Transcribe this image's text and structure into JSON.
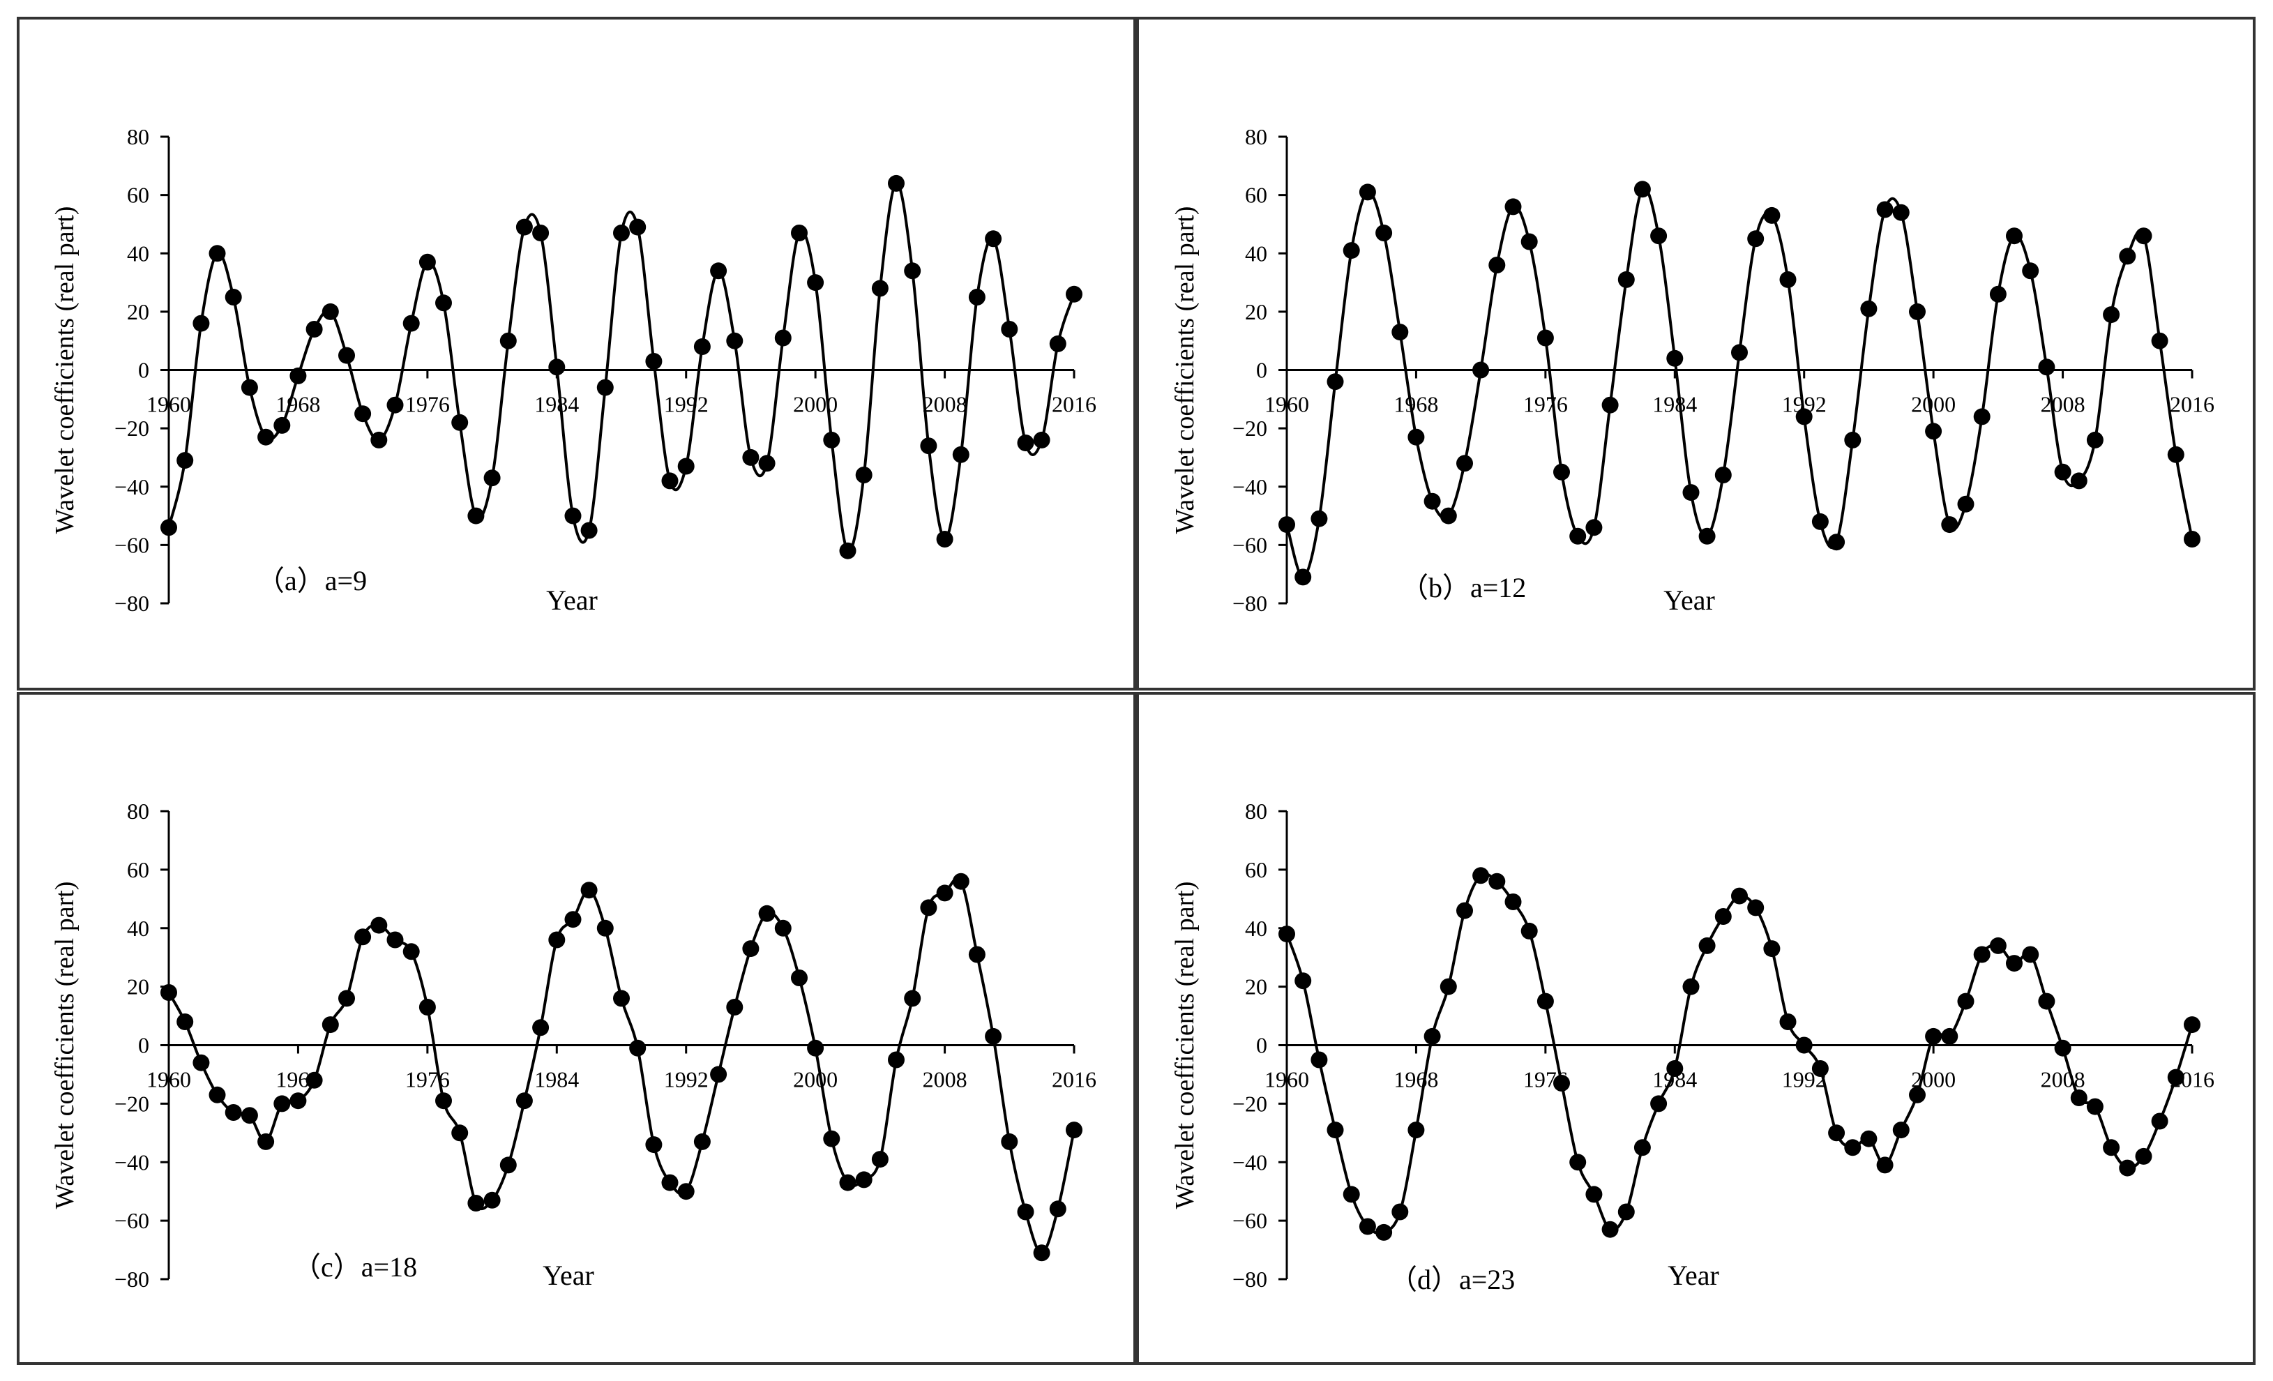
{
  "figure": {
    "panel_count": 4,
    "colors": {
      "line": "#000000",
      "marker": "#000000",
      "frame": "#333333",
      "background": "#ffffff"
    }
  },
  "chart_data": [
    {
      "type": "line",
      "panel_label": "（a）a=9",
      "xlabel": "Year",
      "ylabel": "Wavelet coefficients (real part)",
      "xlim": [
        1960,
        2016
      ],
      "ylim": [
        -80,
        80
      ],
      "y_ticks": [
        "80",
        "60",
        "40",
        "20",
        "0",
        "−20",
        "−40",
        "−60",
        "−80"
      ],
      "x_ticks": [
        "1960",
        "1968",
        "1976",
        "1984",
        "1992",
        "2000",
        "2008",
        "2016"
      ],
      "x": [
        1960,
        1961,
        1962,
        1963,
        1964,
        1965,
        1966,
        1967,
        1968,
        1969,
        1970,
        1971,
        1972,
        1973,
        1974,
        1975,
        1976,
        1977,
        1978,
        1979,
        1980,
        1981,
        1982,
        1983,
        1984,
        1985,
        1986,
        1987,
        1988,
        1989,
        1990,
        1991,
        1992,
        1993,
        1994,
        1995,
        1996,
        1997,
        1998,
        1999,
        2000,
        2001,
        2002,
        2003,
        2004,
        2005,
        2006,
        2007,
        2008,
        2009,
        2010,
        2011,
        2012,
        2013,
        2014,
        2015,
        2016
      ],
      "values": [
        -54,
        -31,
        16,
        40,
        25,
        -6,
        -23,
        -19,
        -2,
        14,
        20,
        5,
        -15,
        -24,
        -12,
        16,
        37,
        23,
        -18,
        -50,
        -37,
        10,
        49,
        47,
        1,
        -50,
        -55,
        -6,
        47,
        49,
        3,
        -38,
        -33,
        8,
        34,
        10,
        -30,
        -32,
        11,
        47,
        30,
        -24,
        -62,
        -36,
        28,
        64,
        34,
        -26,
        -58,
        -29,
        25,
        45,
        14,
        -25,
        -24,
        9,
        26
      ],
      "y_scale_label": "Wavelet coefficients (real part)"
    },
    {
      "type": "line",
      "panel_label": "（b）a=12",
      "xlabel": "Year",
      "ylabel": "Wavelet coefficients (real part)",
      "xlim": [
        1960,
        2016
      ],
      "ylim": [
        -80,
        80
      ],
      "y_ticks": [
        "80",
        "60",
        "40",
        "20",
        "0",
        "−20",
        "−40",
        "−60",
        "−80"
      ],
      "x_ticks": [
        "1960",
        "1968",
        "1976",
        "1984",
        "1992",
        "2000",
        "2008",
        "2016"
      ],
      "x": [
        1960,
        1961,
        1962,
        1963,
        1964,
        1965,
        1966,
        1967,
        1968,
        1969,
        1970,
        1971,
        1972,
        1973,
        1974,
        1975,
        1976,
        1977,
        1978,
        1979,
        1980,
        1981,
        1982,
        1983,
        1984,
        1985,
        1986,
        1987,
        1988,
        1989,
        1990,
        1991,
        1992,
        1993,
        1994,
        1995,
        1996,
        1997,
        1998,
        1999,
        2000,
        2001,
        2002,
        2003,
        2004,
        2005,
        2006,
        2007,
        2008,
        2009,
        2010,
        2011,
        2012,
        2013,
        2014,
        2015,
        2016
      ],
      "values": [
        -53,
        -71,
        -51,
        -4,
        41,
        61,
        47,
        13,
        -23,
        -45,
        -50,
        -32,
        0,
        36,
        56,
        44,
        11,
        -35,
        -57,
        -54,
        -12,
        31,
        62,
        46,
        4,
        -42,
        -57,
        -36,
        6,
        45,
        53,
        31,
        -16,
        -52,
        -59,
        -24,
        21,
        55,
        54,
        20,
        -21,
        -53,
        -46,
        -16,
        26,
        46,
        34,
        1,
        -35,
        -38,
        -24,
        19,
        39,
        46,
        10,
        -29,
        -58
      ]
    },
    {
      "type": "line",
      "panel_label": "（c）a=18",
      "xlabel": "Year",
      "ylabel": "Wavelet coefficients (real part)",
      "xlim": [
        1960,
        2016
      ],
      "ylim": [
        -80,
        80
      ],
      "y_ticks": [
        "80",
        "60",
        "40",
        "20",
        "0",
        "−20",
        "−40",
        "−60",
        "−80"
      ],
      "x_ticks": [
        "1960",
        "1968",
        "1976",
        "1984",
        "1992",
        "2000",
        "2008",
        "2016"
      ],
      "x": [
        1960,
        1961,
        1962,
        1963,
        1964,
        1965,
        1966,
        1967,
        1968,
        1969,
        1970,
        1971,
        1972,
        1973,
        1974,
        1975,
        1976,
        1977,
        1978,
        1979,
        1980,
        1981,
        1982,
        1983,
        1984,
        1985,
        1986,
        1987,
        1988,
        1989,
        1990,
        1991,
        1992,
        1993,
        1994,
        1995,
        1996,
        1997,
        1998,
        1999,
        2000,
        2001,
        2002,
        2003,
        2004,
        2005,
        2006,
        2007,
        2008,
        2009,
        2010,
        2011,
        2012,
        2013,
        2014,
        2015,
        2016
      ],
      "values": [
        18,
        8,
        -6,
        -17,
        -23,
        -24,
        -33,
        -20,
        -19,
        -12,
        7,
        16,
        37,
        41,
        36,
        32,
        13,
        -19,
        -30,
        -54,
        -53,
        -41,
        -19,
        6,
        36,
        43,
        53,
        40,
        16,
        -1,
        -34,
        -47,
        -50,
        -33,
        -10,
        13,
        33,
        45,
        40,
        23,
        -1,
        -32,
        -47,
        -46,
        -39,
        -5,
        16,
        47,
        52,
        56,
        31,
        3,
        -33,
        -57,
        -71,
        -56,
        -29
      ]
    },
    {
      "type": "line",
      "panel_label": "（d）a=23",
      "xlabel": "Year",
      "ylabel": "Wavelet coefficients (real part)",
      "xlim": [
        1960,
        2016
      ],
      "ylim": [
        -80,
        80
      ],
      "y_ticks": [
        "80",
        "60",
        "40",
        "20",
        "0",
        "−20",
        "−40",
        "−60",
        "−80"
      ],
      "x_ticks": [
        "1960",
        "1968",
        "1976",
        "1984",
        "1992",
        "2000",
        "2008",
        "2016"
      ],
      "x": [
        1960,
        1961,
        1962,
        1963,
        1964,
        1965,
        1966,
        1967,
        1968,
        1969,
        1970,
        1971,
        1972,
        1973,
        1974,
        1975,
        1976,
        1977,
        1978,
        1979,
        1980,
        1981,
        1982,
        1983,
        1984,
        1985,
        1986,
        1987,
        1988,
        1989,
        1990,
        1991,
        1992,
        1993,
        1994,
        1995,
        1996,
        1997,
        1998,
        1999,
        2000,
        2001,
        2002,
        2003,
        2004,
        2005,
        2006,
        2007,
        2008,
        2009,
        2010,
        2011,
        2012,
        2013,
        2014,
        2015,
        2016
      ],
      "values": [
        38,
        22,
        -5,
        -29,
        -51,
        -62,
        -64,
        -57,
        -29,
        3,
        20,
        46,
        58,
        56,
        49,
        39,
        15,
        -13,
        -40,
        -51,
        -63,
        -57,
        -35,
        -20,
        -8,
        20,
        34,
        44,
        51,
        47,
        33,
        8,
        0,
        -8,
        -30,
        -35,
        -32,
        -41,
        -29,
        -17,
        3,
        3,
        15,
        31,
        34,
        28,
        31,
        15,
        -1,
        -18,
        -21,
        -35,
        -42,
        -38,
        -26,
        -11,
        7
      ]
    }
  ]
}
